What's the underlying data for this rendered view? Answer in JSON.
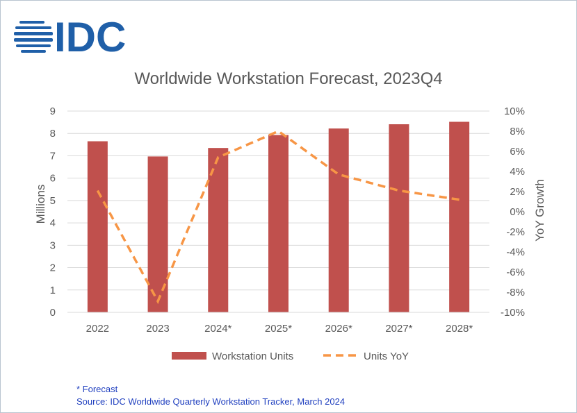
{
  "logo_text": "IDC",
  "chart_data": {
    "type": "bar",
    "title": "Worldwide Workstation Forecast, 2023Q4",
    "categories": [
      "2022",
      "2023",
      "2024*",
      "2025*",
      "2026*",
      "2027*",
      "2028*"
    ],
    "series": [
      {
        "name": "Workstation Units",
        "type": "bar",
        "axis": "left",
        "color": "#c0504d",
        "values": [
          7.65,
          6.97,
          7.35,
          7.93,
          8.22,
          8.41,
          8.52
        ]
      },
      {
        "name": "Units YoY",
        "type": "line",
        "style": "dashed",
        "axis": "right",
        "color": "#f79646",
        "values": [
          0.021,
          -0.089,
          0.054,
          0.08,
          0.037,
          0.021,
          0.012
        ]
      }
    ],
    "ylabel": "Millions",
    "ylim": [
      0,
      9
    ],
    "yticks": [
      "0",
      "1",
      "2",
      "3",
      "4",
      "5",
      "6",
      "7",
      "8",
      "9"
    ],
    "y2label": "YoY Growth",
    "y2lim": [
      -0.1,
      0.1
    ],
    "y2ticks": [
      "-10%",
      "-8%",
      "-6%",
      "-4%",
      "-2%",
      "0%",
      "2%",
      "4%",
      "6%",
      "8%",
      "10%"
    ],
    "grid": true,
    "legend": "bottom"
  },
  "footnotes": {
    "forecast_note": "* Forecast",
    "source": "Source:  IDC Worldwide Quarterly Workstation Tracker, March 2024"
  },
  "colors": {
    "logo_blue": "#1f5fa8",
    "bar": "#c0504d",
    "line": "#f79646",
    "footnote": "#1f3fbf"
  }
}
